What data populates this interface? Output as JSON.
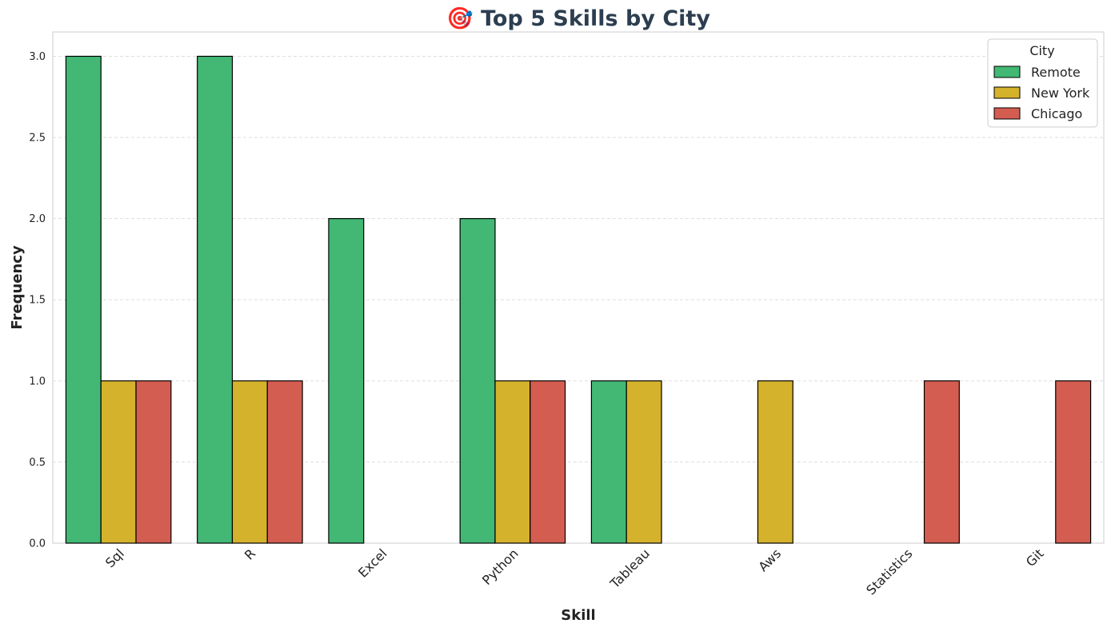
{
  "chart_data": {
    "type": "bar",
    "title": "🎯 Top 5 Skills by City",
    "xlabel": "Skill",
    "ylabel": "Frequency",
    "categories": [
      "Sql",
      "R",
      "Excel",
      "Python",
      "Tableau",
      "Aws",
      "Statistics",
      "Git"
    ],
    "series": [
      {
        "name": "Remote",
        "color": "#42b874",
        "values": [
          3,
          3,
          2,
          2,
          1,
          0,
          0,
          0
        ]
      },
      {
        "name": "New York",
        "color": "#d4b22c",
        "values": [
          1,
          1,
          0,
          1,
          1,
          1,
          0,
          0
        ]
      },
      {
        "name": "Chicago",
        "color": "#d45d51",
        "values": [
          1,
          1,
          0,
          1,
          0,
          0,
          1,
          1
        ]
      }
    ],
    "ylim": [
      0,
      3.15
    ],
    "yticks": [
      "0.0",
      "0.5",
      "1.0",
      "1.5",
      "2.0",
      "2.5",
      "3.0"
    ],
    "grid": "y-dashed",
    "legend": {
      "title": "City",
      "position": "top-right"
    }
  }
}
